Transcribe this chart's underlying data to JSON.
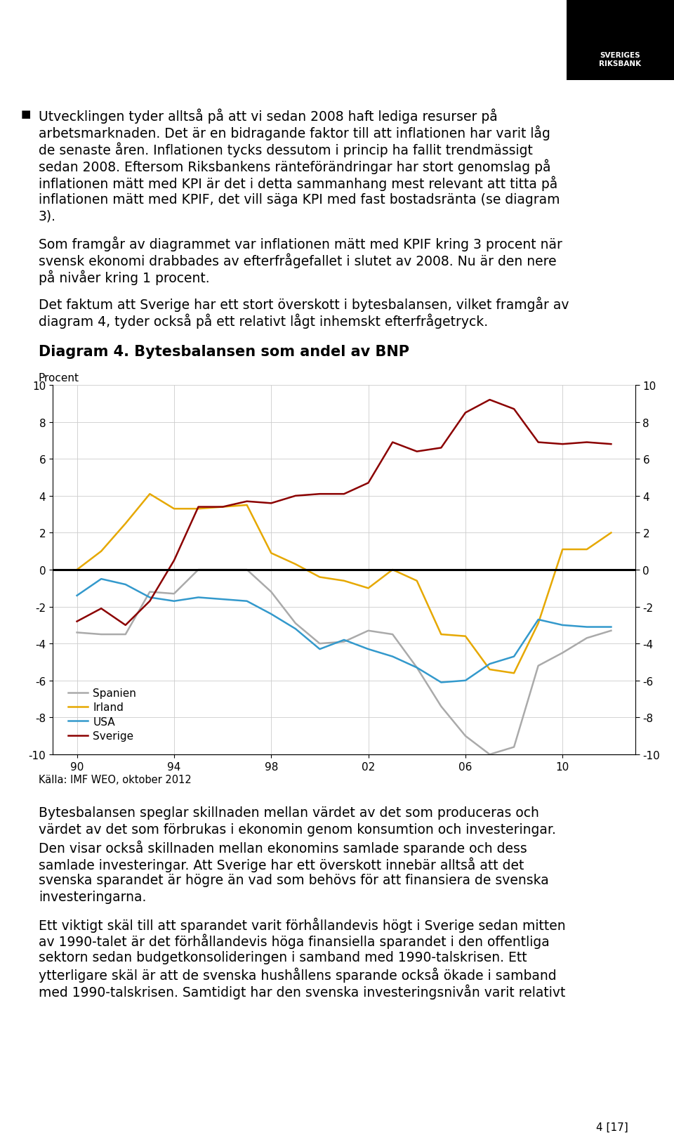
{
  "title": "Diagram 4. Bytesbalansen som andel av BNP",
  "ylabel_left": "Procent",
  "source": "Källa: IMF WEO, oktober 2012",
  "ylim": [
    -10,
    10
  ],
  "yticks": [
    -10,
    -8,
    -6,
    -4,
    -2,
    0,
    2,
    4,
    6,
    8,
    10
  ],
  "xticks": [
    1990,
    1994,
    1998,
    2002,
    2006,
    2010
  ],
  "xticklabels": [
    "90",
    "94",
    "98",
    "02",
    "06",
    "10"
  ],
  "xlim": [
    1989,
    2013
  ],
  "years": [
    1990,
    1991,
    1992,
    1993,
    1994,
    1995,
    1996,
    1997,
    1998,
    1999,
    2000,
    2001,
    2002,
    2003,
    2004,
    2005,
    2006,
    2007,
    2008,
    2009,
    2010,
    2011,
    2012
  ],
  "spanien": [
    -3.4,
    -3.5,
    -3.5,
    -1.2,
    -1.3,
    0.0,
    0.0,
    0.0,
    -1.2,
    -2.9,
    -4.0,
    -3.9,
    -3.3,
    -3.5,
    -5.3,
    -7.4,
    -9.0,
    -10.0,
    -9.6,
    -5.2,
    -4.5,
    -3.7,
    -3.3
  ],
  "irland": [
    0.0,
    1.0,
    2.5,
    4.1,
    3.3,
    3.3,
    3.4,
    3.5,
    0.9,
    0.3,
    -0.4,
    -0.6,
    -1.0,
    0.0,
    -0.6,
    -3.5,
    -3.6,
    -5.4,
    -5.6,
    -2.9,
    1.1,
    1.1,
    2.0
  ],
  "usa": [
    -1.4,
    -0.5,
    -0.8,
    -1.5,
    -1.7,
    -1.5,
    -1.6,
    -1.7,
    -2.4,
    -3.2,
    -4.3,
    -3.8,
    -4.3,
    -4.7,
    -5.3,
    -6.1,
    -6.0,
    -5.1,
    -4.7,
    -2.7,
    -3.0,
    -3.1,
    -3.1
  ],
  "sverige": [
    -2.8,
    -2.1,
    -3.0,
    -1.7,
    0.5,
    3.4,
    3.4,
    3.7,
    3.6,
    4.0,
    4.1,
    4.1,
    4.7,
    6.9,
    6.4,
    6.6,
    8.5,
    9.2,
    8.7,
    6.9,
    6.8,
    6.9,
    6.8
  ],
  "color_spanien": "#aaaaaa",
  "color_irland": "#e6a800",
  "color_usa": "#3399cc",
  "color_sverige": "#8b0000",
  "lw": 1.8,
  "background_color": "#ffffff",
  "grid_color": "#cccccc",
  "page_number": "4 [17]",
  "bullet_char": "■",
  "para1_lines": [
    "Utvecklingen tyder alltså på att vi sedan 2008 haft lediga resurser på",
    "arbetsmarknaden. Det är en bidragande faktor till att inflationen har varit låg",
    "de senaste åren. Inflationen tycks dessutom i princip ha fallit trendmässigt",
    "sedan 2008. Eftersom Riksbankens ränteförändringar har stort genomslag på",
    "inflationen mätt med KPI är det i detta sammanhang mest relevant att titta på",
    "inflationen mätt med KPIF, det vill säga KPI med fast bostadsränta (se diagram",
    "3)."
  ],
  "para2_lines": [
    "Som framgår av diagrammet var inflationen mätt med KPIF kring 3 procent när",
    "svensk ekonomi drabbades av efterfrågefallet i slutet av 2008. Nu är den nere",
    "på nivåer kring 1 procent."
  ],
  "para3_lines": [
    "Det faktum att Sverige har ett stort överskott i bytesbalansen, vilket framgår av",
    "diagram 4, tyder också på ett relativt lågt inhemskt efterfrågetryck."
  ],
  "para4_lines": [
    "Bytesbalansen speglar skillnaden mellan värdet av det som produceras och",
    "värdet av det som förbrukas i ekonomin genom konsumtion och investeringar.",
    "Den visar också skillnaden mellan ekonomins samlade sparande och dess",
    "samlade investeringar. Att Sverige har ett överskott innebär alltså att det",
    "svenska sparandet är högre än vad som behövs för att finansiera de svenska",
    "investeringarna."
  ],
  "para5_lines": [
    "Ett viktigt skäl till att sparandet varit förhållandevis högt i Sverige sedan mitten",
    "av 1990-talet är det förhållandevis höga finansiella sparandet i den offentliga",
    "sektorn sedan budgetkonsolideringen i samband med 1990-talskrisen. Ett",
    "ytterligare skäl är att de svenska hushållens sparande också ökade i samband",
    "med 1990-talskrisen. Samtidigt har den svenska investeringsnivån varit relativt"
  ],
  "legend_labels": [
    "Spanien",
    "Irland",
    "USA",
    "Sverige"
  ]
}
